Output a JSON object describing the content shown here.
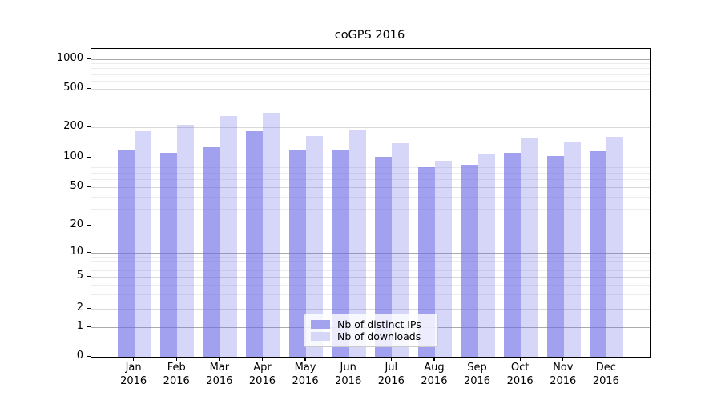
{
  "chart_data": {
    "type": "bar",
    "title": "coGPS 2016",
    "categories": [
      "Jan 2016",
      "Feb 2016",
      "Mar 2016",
      "Apr 2016",
      "May 2016",
      "Jun 2016",
      "Jul 2016",
      "Aug 2016",
      "Sep 2016",
      "Oct 2016",
      "Nov 2016",
      "Dec 2016"
    ],
    "month_labels": [
      "Jan",
      "Feb",
      "Mar",
      "Apr",
      "May",
      "Jun",
      "Jul",
      "Aug",
      "Sep",
      "Oct",
      "Nov",
      "Dec"
    ],
    "year_label": "2016",
    "series": [
      {
        "name": "Nb of distinct IPs",
        "color": "rgba(104,104,230,0.62)",
        "color_hex": "#a2a2ef",
        "values": [
          117,
          112,
          126,
          184,
          120,
          121,
          102,
          80,
          84,
          112,
          104,
          116
        ]
      },
      {
        "name": "Nb of downloads",
        "color": "rgba(104,104,230,0.27)",
        "color_hex": "#d6d6f8",
        "values": [
          182,
          210,
          260,
          280,
          163,
          185,
          140,
          93,
          110,
          154,
          143,
          160
        ]
      }
    ],
    "y_ticks": [
      1000,
      500,
      200,
      100,
      50,
      20,
      10,
      5,
      2,
      1,
      0
    ],
    "yscale": "symlog",
    "ylim": [
      0,
      1300
    ],
    "grid": "both",
    "legend_position": "lower center",
    "xlabel": "",
    "ylabel": ""
  }
}
